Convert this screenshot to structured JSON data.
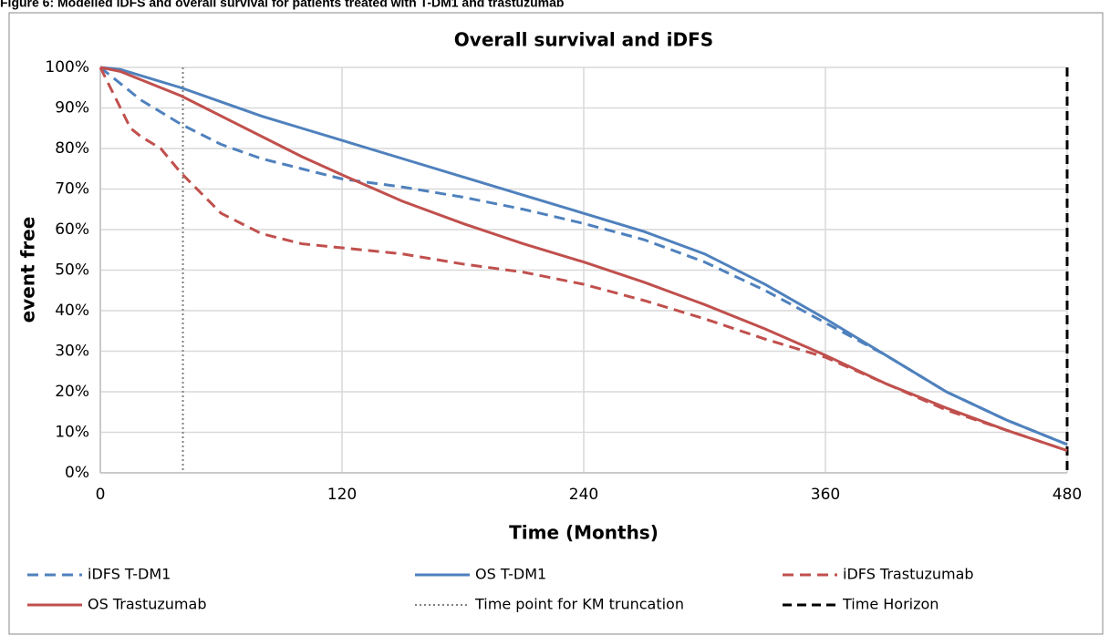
{
  "caption": "Figure 6: Modelled iDFS and overall survival for patients treated with T-DM1 and trastuzumab",
  "chart_data": {
    "type": "line",
    "title": "Overall survival and iDFS",
    "x_label": "Time (Months)",
    "y_label": "event free",
    "xlim": [
      0,
      480
    ],
    "xticks": [
      0,
      120,
      240,
      360,
      480
    ],
    "ylim": [
      0,
      100
    ],
    "yticks": [
      {
        "value": 0,
        "label": "0%"
      },
      {
        "value": 10,
        "label": "10%"
      },
      {
        "value": 20,
        "label": "20%"
      },
      {
        "value": 30,
        "label": "30%"
      },
      {
        "value": 40,
        "label": "40%"
      },
      {
        "value": 50,
        "label": "50%"
      },
      {
        "value": 60,
        "label": "60%"
      },
      {
        "value": 70,
        "label": "70%"
      },
      {
        "value": 80,
        "label": "80%"
      },
      {
        "value": 90,
        "label": "90%"
      },
      {
        "value": 100,
        "label": "100%"
      }
    ],
    "grid": true,
    "series": [
      {
        "name": "iDFS T-DM1",
        "color": "#4f81bd",
        "dashed": true,
        "x": [
          0,
          10,
          20,
          30,
          40,
          60,
          80,
          100,
          120,
          150,
          180,
          210,
          240,
          270,
          300,
          330,
          360,
          390,
          420,
          450,
          480
        ],
        "values": [
          100,
          96,
          92,
          89,
          86,
          81,
          77.5,
          75,
          72.5,
          70.5,
          68,
          65,
          61.5,
          57.5,
          52,
          45,
          37,
          29,
          20,
          13,
          7
        ]
      },
      {
        "name": "OS T-DM1",
        "color": "#4f81bd",
        "dashed": false,
        "x": [
          0,
          10,
          20,
          40,
          60,
          80,
          100,
          120,
          150,
          180,
          210,
          240,
          270,
          300,
          330,
          360,
          390,
          420,
          450,
          480
        ],
        "values": [
          100,
          99.5,
          98,
          95,
          91.5,
          88,
          85,
          82,
          77.5,
          73,
          68.5,
          64,
          59.5,
          54,
          46.5,
          38,
          29,
          20,
          13,
          7
        ]
      },
      {
        "name": "iDFS Trastuzumab",
        "color": "#c0504d",
        "dashed": true,
        "x": [
          0,
          5,
          10,
          15,
          20,
          30,
          40,
          50,
          60,
          80,
          100,
          120,
          150,
          180,
          210,
          240,
          270,
          300,
          330,
          360,
          390,
          420,
          450,
          480
        ],
        "values": [
          100,
          95,
          90,
          85,
          83,
          80,
          74,
          69,
          64,
          59,
          56.5,
          55.5,
          54,
          51.5,
          49.5,
          46.5,
          42.5,
          38,
          33,
          28.5,
          22,
          15.5,
          10.5,
          5.5
        ]
      },
      {
        "name": "OS Trastuzumab",
        "color": "#c0504d",
        "dashed": false,
        "x": [
          0,
          10,
          20,
          40,
          60,
          80,
          100,
          120,
          150,
          180,
          210,
          240,
          270,
          300,
          330,
          360,
          390,
          420,
          450,
          480
        ],
        "values": [
          100,
          99,
          97,
          93,
          88,
          83,
          78,
          73.5,
          67,
          61.5,
          56.5,
          52,
          47,
          41.5,
          35.5,
          29,
          22,
          16,
          10.5,
          5.5
        ]
      }
    ],
    "vlines": [
      {
        "name": "Time point for KM truncation",
        "x": 41,
        "color": "#808080",
        "style": "dotted"
      },
      {
        "name": "Time Horizon",
        "x": 480,
        "color": "#000000",
        "style": "dashed"
      }
    ]
  }
}
